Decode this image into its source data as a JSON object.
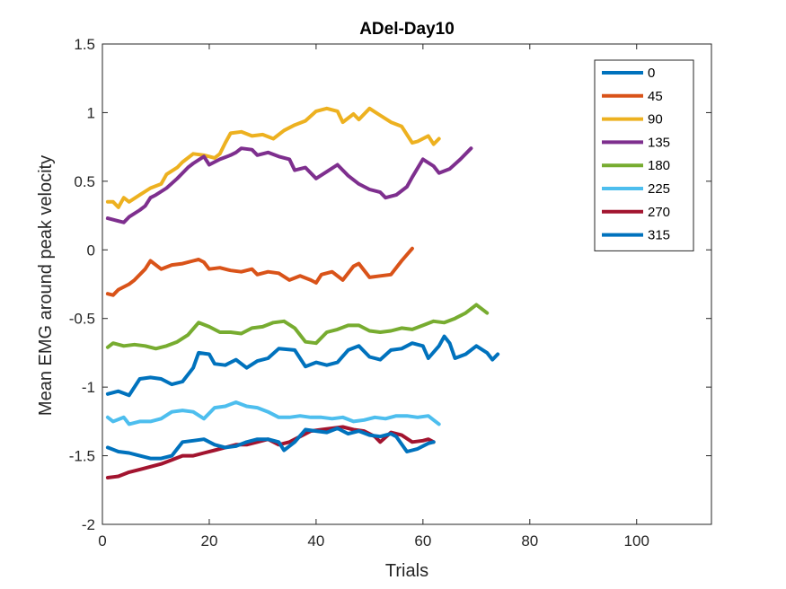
{
  "chart_data": {
    "type": "line",
    "title": "ADel-Day10",
    "xlabel": "Trials",
    "ylabel": "Mean EMG around peak velocity",
    "xlim": [
      0,
      114
    ],
    "ylim": [
      -2,
      1.5
    ],
    "xticks": [
      0,
      20,
      40,
      60,
      80,
      100
    ],
    "yticks": [
      -2,
      -1.5,
      -1,
      -0.5,
      0,
      0.5,
      1,
      1.5
    ],
    "ytick_labels": [
      "-2",
      "-1.5",
      "-1",
      "-0.5",
      "0",
      "0.5",
      "1",
      "1.5"
    ],
    "grid": false,
    "legend_position": "top-right",
    "series": [
      {
        "name": "0",
        "color": "#0072BD",
        "points": [
          [
            1,
            -1.05
          ],
          [
            3,
            -1.03
          ],
          [
            5,
            -1.06
          ],
          [
            7,
            -0.94
          ],
          [
            9,
            -0.93
          ],
          [
            11,
            -0.94
          ],
          [
            13,
            -0.98
          ],
          [
            15,
            -0.96
          ],
          [
            17,
            -0.86
          ],
          [
            18,
            -0.75
          ],
          [
            20,
            -0.76
          ],
          [
            21,
            -0.83
          ],
          [
            23,
            -0.84
          ],
          [
            25,
            -0.8
          ],
          [
            27,
            -0.86
          ],
          [
            29,
            -0.81
          ],
          [
            31,
            -0.79
          ],
          [
            33,
            -0.72
          ],
          [
            36,
            -0.73
          ],
          [
            38,
            -0.85
          ],
          [
            40,
            -0.82
          ],
          [
            42,
            -0.84
          ],
          [
            44,
            -0.82
          ],
          [
            46,
            -0.73
          ],
          [
            48,
            -0.7
          ],
          [
            50,
            -0.78
          ],
          [
            52,
            -0.8
          ],
          [
            54,
            -0.73
          ],
          [
            56,
            -0.72
          ],
          [
            58,
            -0.68
          ],
          [
            60,
            -0.7
          ],
          [
            61,
            -0.79
          ],
          [
            63,
            -0.7
          ],
          [
            64,
            -0.63
          ],
          [
            65,
            -0.68
          ],
          [
            66,
            -0.79
          ],
          [
            68,
            -0.76
          ],
          [
            70,
            -0.7
          ],
          [
            72,
            -0.75
          ],
          [
            73,
            -0.8
          ],
          [
            74,
            -0.76
          ]
        ]
      },
      {
        "name": "45",
        "color": "#D95319",
        "points": [
          [
            1,
            -0.32
          ],
          [
            2,
            -0.33
          ],
          [
            3,
            -0.29
          ],
          [
            5,
            -0.25
          ],
          [
            6,
            -0.22
          ],
          [
            8,
            -0.14
          ],
          [
            9,
            -0.08
          ],
          [
            11,
            -0.14
          ],
          [
            13,
            -0.11
          ],
          [
            15,
            -0.1
          ],
          [
            17,
            -0.08
          ],
          [
            18,
            -0.07
          ],
          [
            19,
            -0.09
          ],
          [
            20,
            -0.14
          ],
          [
            22,
            -0.13
          ],
          [
            24,
            -0.15
          ],
          [
            26,
            -0.16
          ],
          [
            28,
            -0.14
          ],
          [
            29,
            -0.18
          ],
          [
            31,
            -0.16
          ],
          [
            33,
            -0.17
          ],
          [
            35,
            -0.22
          ],
          [
            37,
            -0.19
          ],
          [
            39,
            -0.22
          ],
          [
            40,
            -0.24
          ],
          [
            41,
            -0.18
          ],
          [
            43,
            -0.16
          ],
          [
            45,
            -0.22
          ],
          [
            47,
            -0.12
          ],
          [
            48,
            -0.1
          ],
          [
            50,
            -0.2
          ],
          [
            52,
            -0.19
          ],
          [
            54,
            -0.18
          ],
          [
            56,
            -0.08
          ],
          [
            58,
            0.01
          ]
        ]
      },
      {
        "name": "90",
        "color": "#EDB120",
        "points": [
          [
            1,
            0.35
          ],
          [
            2,
            0.35
          ],
          [
            3,
            0.31
          ],
          [
            4,
            0.38
          ],
          [
            5,
            0.35
          ],
          [
            7,
            0.4
          ],
          [
            9,
            0.45
          ],
          [
            11,
            0.48
          ],
          [
            12,
            0.55
          ],
          [
            14,
            0.6
          ],
          [
            15,
            0.64
          ],
          [
            17,
            0.7
          ],
          [
            19,
            0.69
          ],
          [
            21,
            0.67
          ],
          [
            22,
            0.7
          ],
          [
            23,
            0.78
          ],
          [
            24,
            0.85
          ],
          [
            26,
            0.86
          ],
          [
            28,
            0.83
          ],
          [
            30,
            0.84
          ],
          [
            32,
            0.81
          ],
          [
            34,
            0.87
          ],
          [
            36,
            0.91
          ],
          [
            38,
            0.94
          ],
          [
            40,
            1.01
          ],
          [
            42,
            1.03
          ],
          [
            44,
            1.01
          ],
          [
            45,
            0.93
          ],
          [
            47,
            0.99
          ],
          [
            48,
            0.95
          ],
          [
            50,
            1.03
          ],
          [
            52,
            0.98
          ],
          [
            54,
            0.93
          ],
          [
            56,
            0.9
          ],
          [
            58,
            0.78
          ],
          [
            59,
            0.79
          ],
          [
            61,
            0.83
          ],
          [
            62,
            0.77
          ],
          [
            63,
            0.81
          ]
        ]
      },
      {
        "name": "135",
        "color": "#7E2F8E",
        "points": [
          [
            1,
            0.23
          ],
          [
            3,
            0.21
          ],
          [
            4,
            0.2
          ],
          [
            5,
            0.24
          ],
          [
            7,
            0.29
          ],
          [
            8,
            0.32
          ],
          [
            9,
            0.38
          ],
          [
            10,
            0.4
          ],
          [
            12,
            0.45
          ],
          [
            14,
            0.52
          ],
          [
            16,
            0.6
          ],
          [
            17,
            0.63
          ],
          [
            19,
            0.68
          ],
          [
            20,
            0.62
          ],
          [
            22,
            0.66
          ],
          [
            24,
            0.69
          ],
          [
            25,
            0.71
          ],
          [
            26,
            0.74
          ],
          [
            28,
            0.73
          ],
          [
            29,
            0.69
          ],
          [
            31,
            0.71
          ],
          [
            33,
            0.68
          ],
          [
            35,
            0.66
          ],
          [
            36,
            0.58
          ],
          [
            38,
            0.6
          ],
          [
            40,
            0.52
          ],
          [
            42,
            0.57
          ],
          [
            44,
            0.62
          ],
          [
            46,
            0.54
          ],
          [
            48,
            0.48
          ],
          [
            50,
            0.44
          ],
          [
            52,
            0.42
          ],
          [
            53,
            0.38
          ],
          [
            55,
            0.4
          ],
          [
            57,
            0.46
          ],
          [
            58,
            0.53
          ],
          [
            60,
            0.66
          ],
          [
            62,
            0.61
          ],
          [
            63,
            0.56
          ],
          [
            65,
            0.59
          ],
          [
            67,
            0.66
          ],
          [
            69,
            0.74
          ]
        ]
      },
      {
        "name": "180",
        "color": "#77AC30",
        "points": [
          [
            1,
            -0.71
          ],
          [
            2,
            -0.68
          ],
          [
            4,
            -0.7
          ],
          [
            6,
            -0.69
          ],
          [
            8,
            -0.7
          ],
          [
            10,
            -0.72
          ],
          [
            12,
            -0.7
          ],
          [
            14,
            -0.67
          ],
          [
            16,
            -0.62
          ],
          [
            18,
            -0.53
          ],
          [
            20,
            -0.56
          ],
          [
            22,
            -0.6
          ],
          [
            24,
            -0.6
          ],
          [
            26,
            -0.61
          ],
          [
            28,
            -0.57
          ],
          [
            30,
            -0.56
          ],
          [
            32,
            -0.53
          ],
          [
            34,
            -0.52
          ],
          [
            36,
            -0.57
          ],
          [
            38,
            -0.67
          ],
          [
            40,
            -0.68
          ],
          [
            42,
            -0.6
          ],
          [
            44,
            -0.58
          ],
          [
            46,
            -0.55
          ],
          [
            48,
            -0.55
          ],
          [
            50,
            -0.59
          ],
          [
            52,
            -0.6
          ],
          [
            54,
            -0.59
          ],
          [
            56,
            -0.57
          ],
          [
            58,
            -0.58
          ],
          [
            60,
            -0.55
          ],
          [
            62,
            -0.52
          ],
          [
            64,
            -0.53
          ],
          [
            66,
            -0.5
          ],
          [
            68,
            -0.46
          ],
          [
            70,
            -0.4
          ],
          [
            72,
            -0.46
          ]
        ]
      },
      {
        "name": "225",
        "color": "#4DBEEE",
        "points": [
          [
            1,
            -1.22
          ],
          [
            2,
            -1.25
          ],
          [
            4,
            -1.22
          ],
          [
            5,
            -1.27
          ],
          [
            7,
            -1.25
          ],
          [
            9,
            -1.25
          ],
          [
            11,
            -1.23
          ],
          [
            13,
            -1.18
          ],
          [
            15,
            -1.17
          ],
          [
            17,
            -1.18
          ],
          [
            19,
            -1.23
          ],
          [
            21,
            -1.15
          ],
          [
            23,
            -1.14
          ],
          [
            25,
            -1.11
          ],
          [
            27,
            -1.14
          ],
          [
            29,
            -1.15
          ],
          [
            31,
            -1.18
          ],
          [
            33,
            -1.22
          ],
          [
            35,
            -1.22
          ],
          [
            37,
            -1.21
          ],
          [
            39,
            -1.22
          ],
          [
            41,
            -1.22
          ],
          [
            43,
            -1.23
          ],
          [
            45,
            -1.22
          ],
          [
            47,
            -1.25
          ],
          [
            49,
            -1.24
          ],
          [
            51,
            -1.22
          ],
          [
            53,
            -1.23
          ],
          [
            55,
            -1.21
          ],
          [
            57,
            -1.21
          ],
          [
            59,
            -1.22
          ],
          [
            61,
            -1.21
          ],
          [
            62,
            -1.24
          ],
          [
            63,
            -1.27
          ]
        ]
      },
      {
        "name": "270",
        "color": "#A2142F",
        "points": [
          [
            1,
            -1.66
          ],
          [
            3,
            -1.65
          ],
          [
            5,
            -1.62
          ],
          [
            7,
            -1.6
          ],
          [
            9,
            -1.58
          ],
          [
            11,
            -1.56
          ],
          [
            13,
            -1.53
          ],
          [
            15,
            -1.5
          ],
          [
            17,
            -1.5
          ],
          [
            19,
            -1.48
          ],
          [
            21,
            -1.46
          ],
          [
            23,
            -1.44
          ],
          [
            25,
            -1.42
          ],
          [
            27,
            -1.42
          ],
          [
            29,
            -1.4
          ],
          [
            31,
            -1.38
          ],
          [
            33,
            -1.42
          ],
          [
            35,
            -1.4
          ],
          [
            37,
            -1.36
          ],
          [
            39,
            -1.32
          ],
          [
            41,
            -1.31
          ],
          [
            43,
            -1.3
          ],
          [
            45,
            -1.29
          ],
          [
            47,
            -1.31
          ],
          [
            49,
            -1.32
          ],
          [
            51,
            -1.36
          ],
          [
            52,
            -1.4
          ],
          [
            54,
            -1.33
          ],
          [
            56,
            -1.35
          ],
          [
            58,
            -1.4
          ],
          [
            60,
            -1.39
          ],
          [
            61,
            -1.38
          ],
          [
            62,
            -1.4
          ]
        ]
      },
      {
        "name": "315",
        "color": "#0072BD",
        "points": [
          [
            1,
            -1.44
          ],
          [
            3,
            -1.47
          ],
          [
            5,
            -1.48
          ],
          [
            7,
            -1.5
          ],
          [
            9,
            -1.52
          ],
          [
            11,
            -1.52
          ],
          [
            13,
            -1.5
          ],
          [
            14,
            -1.45
          ],
          [
            15,
            -1.4
          ],
          [
            17,
            -1.39
          ],
          [
            19,
            -1.38
          ],
          [
            21,
            -1.42
          ],
          [
            23,
            -1.44
          ],
          [
            25,
            -1.43
          ],
          [
            27,
            -1.4
          ],
          [
            29,
            -1.38
          ],
          [
            31,
            -1.38
          ],
          [
            33,
            -1.4
          ],
          [
            34,
            -1.46
          ],
          [
            36,
            -1.4
          ],
          [
            38,
            -1.31
          ],
          [
            40,
            -1.32
          ],
          [
            42,
            -1.33
          ],
          [
            44,
            -1.3
          ],
          [
            46,
            -1.34
          ],
          [
            48,
            -1.32
          ],
          [
            50,
            -1.35
          ],
          [
            52,
            -1.36
          ],
          [
            54,
            -1.34
          ],
          [
            55,
            -1.36
          ],
          [
            57,
            -1.47
          ],
          [
            59,
            -1.45
          ],
          [
            61,
            -1.41
          ],
          [
            62,
            -1.4
          ]
        ]
      }
    ]
  }
}
